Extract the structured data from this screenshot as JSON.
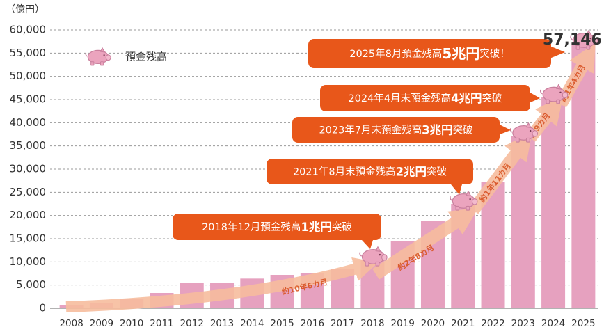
{
  "chart_data": {
    "type": "bar",
    "unit_label": "（億円）",
    "categories": [
      "2008",
      "2009",
      "2010",
      "2011",
      "2012",
      "2013",
      "2014",
      "2015",
      "2016",
      "2017",
      "2018",
      "2019",
      "2020",
      "2021",
      "2022",
      "2023",
      "2024",
      "2025"
    ],
    "series": [
      {
        "name": "預金残高",
        "color": "#e6a1bf",
        "values": [
          600,
          1200,
          2000,
          3300,
          5500,
          5500,
          6400,
          7200,
          7500,
          8500,
          10500,
          14400,
          18800,
          22500,
          27200,
          37200,
          45500,
          57146
        ],
        "value_labels": [
          null,
          null,
          null,
          null,
          null,
          null,
          null,
          null,
          null,
          null,
          null,
          null,
          null,
          null,
          null,
          null,
          null,
          "57,146"
        ]
      }
    ],
    "ylim": [
      0,
      60000
    ],
    "yticks": [
      0,
      {
        "value": 5000,
        "label": "5,000"
      },
      {
        "value": 10000,
        "label": "10,000"
      },
      {
        "value": 15000,
        "label": "15,000"
      },
      {
        "value": 20000,
        "label": "20,000"
      },
      {
        "value": 25000,
        "label": "25,000"
      },
      {
        "value": 30000,
        "label": "30,000"
      },
      {
        "value": 35000,
        "label": "35,000"
      },
      {
        "value": 40000,
        "label": "40,000"
      },
      {
        "value": 45000,
        "label": "45,000"
      },
      {
        "value": 50000,
        "label": "50,000"
      },
      {
        "value": 55000,
        "label": "55,000"
      },
      {
        "value": 60000,
        "label": "60,000"
      }
    ],
    "grid": true,
    "annotations": [
      {
        "parts": [
          "2018年12月預金残高",
          "1兆円",
          "突破"
        ]
      },
      {
        "parts": [
          "2021年8月末預金残高",
          "2兆円",
          "突破"
        ]
      },
      {
        "parts": [
          "2023年7月末預金残高",
          "3兆円",
          "突破"
        ]
      },
      {
        "parts": [
          "2024年4月末預金残高",
          "4兆円",
          "突破"
        ]
      },
      {
        "parts": [
          "2025年8月預金残高",
          "5兆円",
          "突破！"
        ]
      }
    ],
    "intervals": [
      "約10年6カ月",
      "約2年8カ月",
      "約1年11カ月",
      "約9カ月",
      "約1年4カ月"
    ]
  }
}
